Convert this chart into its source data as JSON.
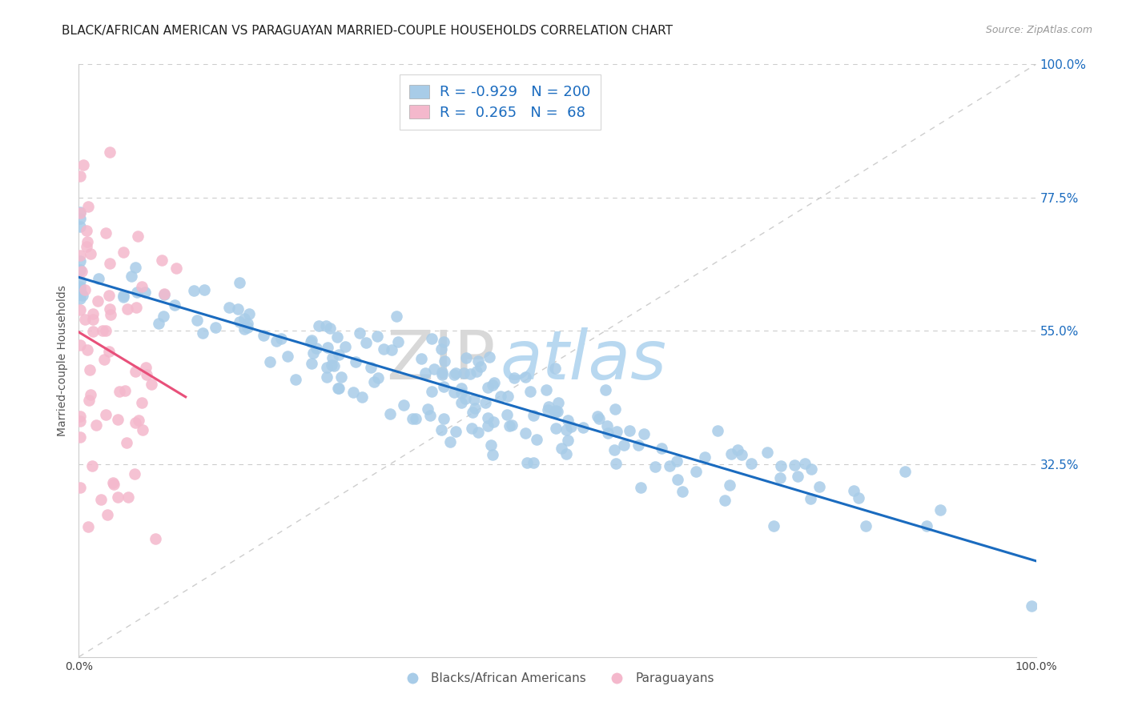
{
  "title": "BLACK/AFRICAN AMERICAN VS PARAGUAYAN MARRIED-COUPLE HOUSEHOLDS CORRELATION CHART",
  "source": "Source: ZipAtlas.com",
  "ylabel": "Married-couple Households",
  "ytick_labels": [
    "100.0%",
    "77.5%",
    "55.0%",
    "32.5%"
  ],
  "ytick_positions": [
    1.0,
    0.775,
    0.55,
    0.325
  ],
  "legend_blue_label": "R = -0.929   N = 200",
  "legend_pink_label": "R =  0.265   N =  68",
  "blue_color": "#a8cce8",
  "pink_color": "#f4b8cc",
  "blue_line_color": "#1a6bbf",
  "pink_line_color": "#e8507a",
  "diagonal_color": "#c8c8c8",
  "watermark_zip": "ZIP",
  "watermark_atlas": "atlas",
  "watermark_zip_color": "#d8d8d8",
  "watermark_atlas_color": "#b8d8f0",
  "blue_n": 200,
  "pink_n": 68,
  "tick_label_color_right": "#1a6bbf",
  "title_fontsize": 11,
  "source_fontsize": 9,
  "legend_fontsize": 13,
  "ylabel_fontsize": 10,
  "bottom_legend_label_blue": "Blacks/African Americans",
  "bottom_legend_label_pink": "Paraguayans"
}
